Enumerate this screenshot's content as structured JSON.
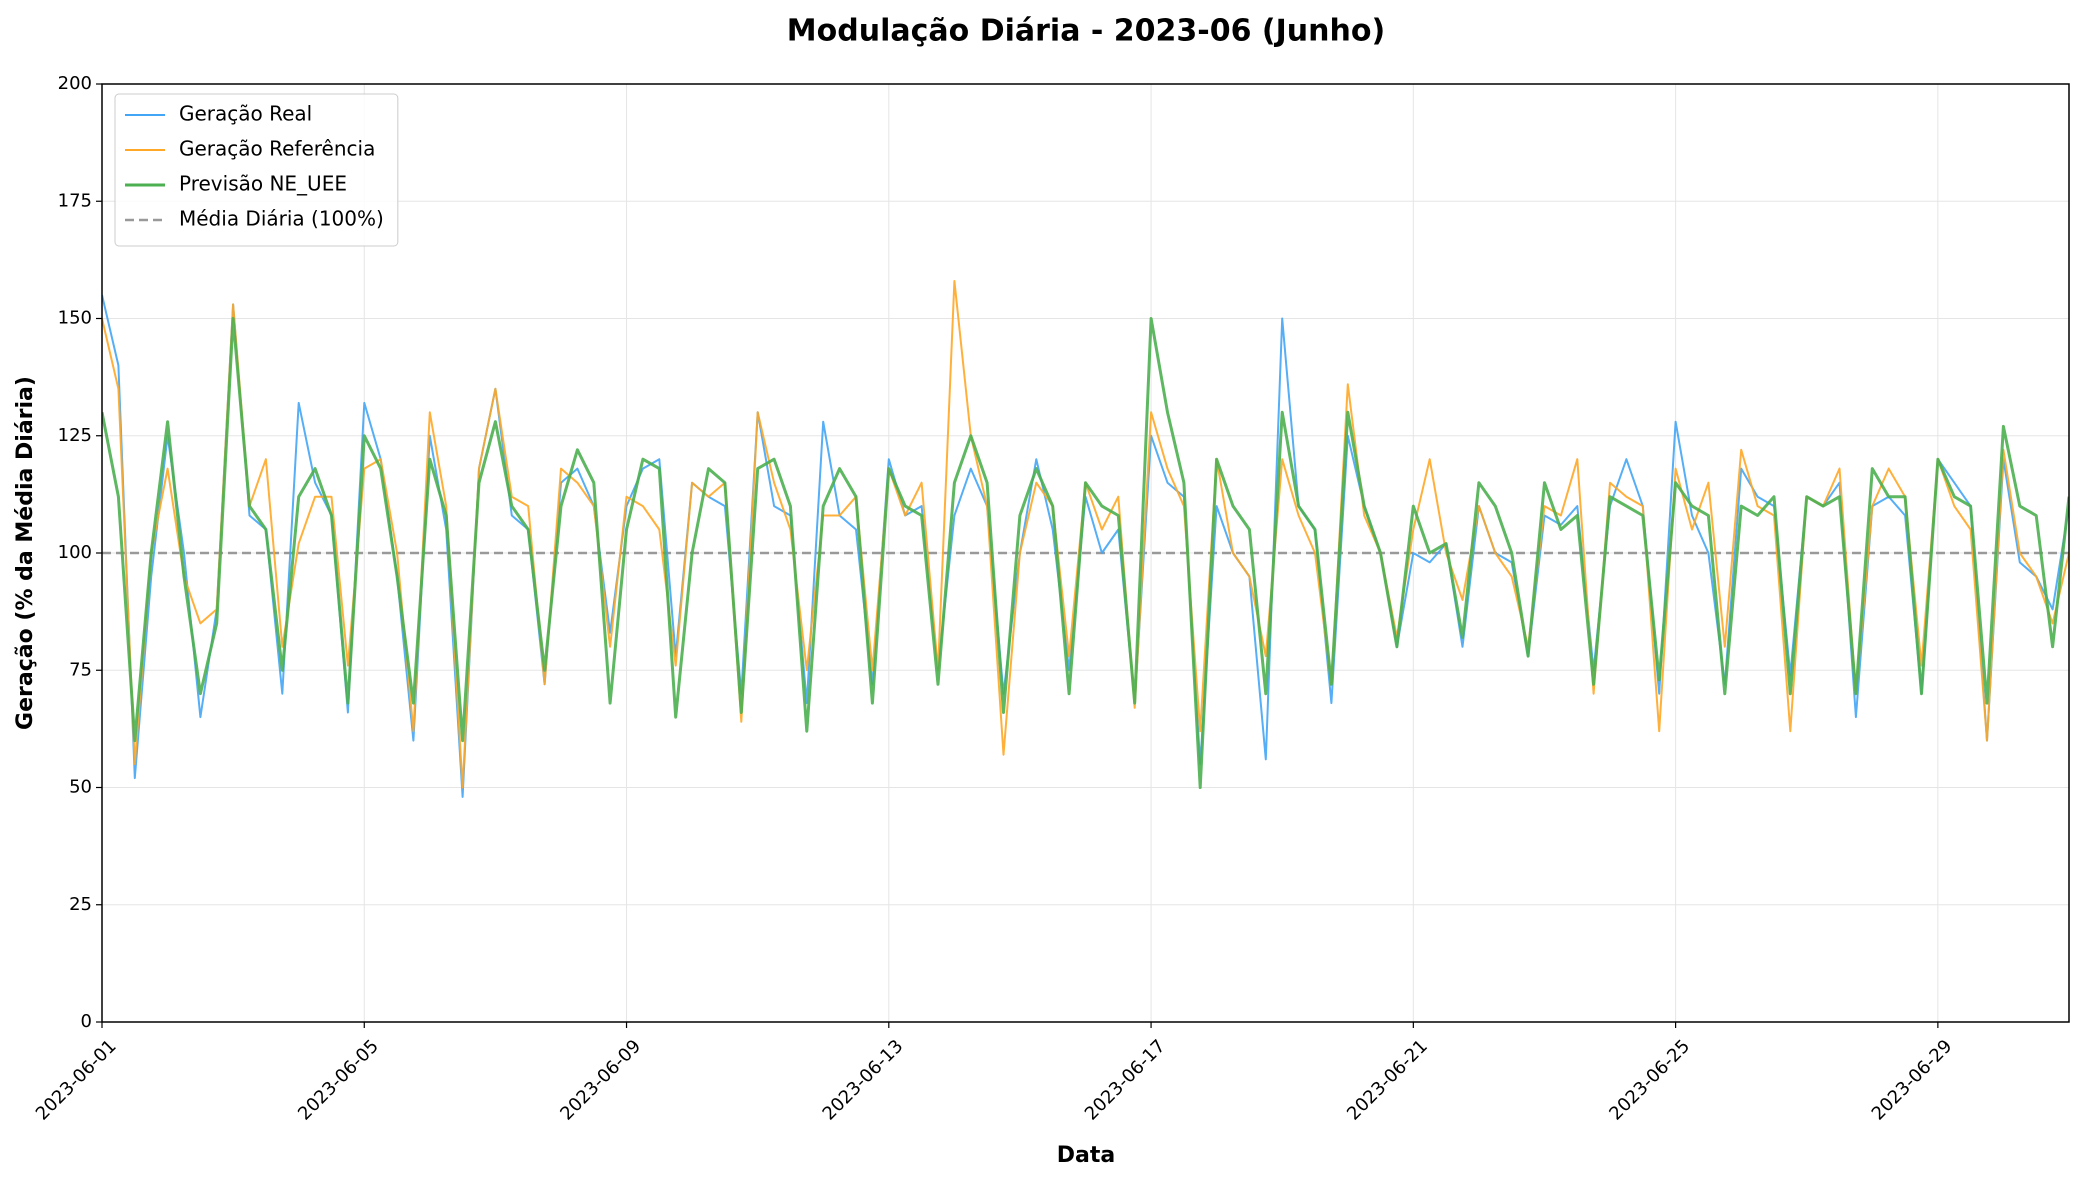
{
  "chart_data": {
    "type": "line",
    "title": "Modulação Diária - 2023-06 (Junho)",
    "x_label": "Data",
    "y_label": "Geração (% da Média Diária)",
    "xlim": [
      0,
      30
    ],
    "ylim": [
      0,
      200
    ],
    "yticks": [
      0,
      25,
      50,
      75,
      100,
      125,
      150,
      175,
      200
    ],
    "xticks": [
      {
        "value": 0,
        "label": "2023-06-01"
      },
      {
        "value": 4,
        "label": "2023-06-05"
      },
      {
        "value": 8,
        "label": "2023-06-09"
      },
      {
        "value": 12,
        "label": "2023-06-13"
      },
      {
        "value": 16,
        "label": "2023-06-17"
      },
      {
        "value": 20,
        "label": "2023-06-21"
      },
      {
        "value": 24,
        "label": "2023-06-25"
      },
      {
        "value": 28,
        "label": "2023-06-29"
      }
    ],
    "grid": true,
    "legend_position": "upper-left",
    "x": [
      0,
      0.25,
      0.5,
      0.75,
      1,
      1.25,
      1.5,
      1.75,
      2,
      2.25,
      2.5,
      2.75,
      3,
      3.25,
      3.5,
      3.75,
      4,
      4.25,
      4.5,
      4.75,
      5,
      5.25,
      5.5,
      5.75,
      6,
      6.25,
      6.5,
      6.75,
      7,
      7.25,
      7.5,
      7.75,
      8,
      8.25,
      8.5,
      8.75,
      9,
      9.25,
      9.5,
      9.75,
      10,
      10.25,
      10.5,
      10.75,
      11,
      11.25,
      11.5,
      11.75,
      12,
      12.25,
      12.5,
      12.75,
      13,
      13.25,
      13.5,
      13.75,
      14,
      14.25,
      14.5,
      14.75,
      15,
      15.25,
      15.5,
      15.75,
      16,
      16.25,
      16.5,
      16.75,
      17,
      17.25,
      17.5,
      17.75,
      18,
      18.25,
      18.5,
      18.75,
      19,
      19.25,
      19.5,
      19.75,
      20,
      20.25,
      20.5,
      20.75,
      21,
      21.25,
      21.5,
      21.75,
      22,
      22.25,
      22.5,
      22.75,
      23,
      23.25,
      23.5,
      23.75,
      24,
      24.25,
      24.5,
      24.75,
      25,
      25.25,
      25.5,
      25.75,
      26,
      26.25,
      26.5,
      26.75,
      27,
      27.25,
      27.5,
      27.75,
      28,
      28.25,
      28.5,
      28.75,
      29,
      29.25,
      29.5,
      29.75,
      30
    ],
    "series": [
      {
        "name": "Geração Real",
        "color": "#42a5f5",
        "width": 2,
        "values": [
          155,
          140,
          52,
          95,
          125,
          100,
          65,
          88,
          153,
          108,
          105,
          70,
          132,
          115,
          108,
          66,
          132,
          120,
          95,
          60,
          125,
          105,
          48,
          118,
          135,
          108,
          105,
          72,
          115,
          118,
          110,
          83,
          110,
          118,
          120,
          78,
          115,
          112,
          110,
          70,
          130,
          110,
          108,
          68,
          128,
          108,
          105,
          72,
          120,
          108,
          110,
          75,
          108,
          118,
          110,
          70,
          100,
          120,
          105,
          75,
          112,
          100,
          105,
          68,
          125,
          115,
          112,
          55,
          110,
          100,
          95,
          56,
          150,
          110,
          105,
          68,
          125,
          110,
          100,
          80,
          100,
          98,
          102,
          80,
          110,
          100,
          98,
          78,
          108,
          106,
          110,
          75,
          110,
          120,
          110,
          70,
          128,
          108,
          100,
          72,
          118,
          112,
          110,
          74,
          112,
          110,
          115,
          65,
          110,
          112,
          108,
          70,
          120,
          115,
          110,
          60,
          120,
          98,
          95,
          88,
          110
        ]
      },
      {
        "name": "Geração Referência",
        "color": "#ffa726",
        "width": 2,
        "values": [
          150,
          135,
          55,
          100,
          118,
          95,
          85,
          88,
          153,
          110,
          120,
          80,
          102,
          112,
          112,
          76,
          118,
          120,
          100,
          62,
          130,
          110,
          50,
          118,
          135,
          112,
          110,
          72,
          118,
          115,
          110,
          80,
          112,
          110,
          105,
          76,
          115,
          112,
          115,
          64,
          130,
          115,
          105,
          75,
          108,
          108,
          112,
          75,
          118,
          108,
          115,
          75,
          158,
          125,
          110,
          57,
          100,
          115,
          110,
          78,
          115,
          105,
          112,
          67,
          130,
          118,
          110,
          62,
          120,
          100,
          95,
          78,
          120,
          108,
          100,
          72,
          136,
          108,
          100,
          82,
          105,
          120,
          100,
          90,
          110,
          100,
          95,
          80,
          110,
          108,
          120,
          70,
          115,
          112,
          110,
          62,
          118,
          105,
          115,
          80,
          122,
          110,
          108,
          62,
          112,
          110,
          118,
          70,
          110,
          118,
          112,
          76,
          120,
          110,
          105,
          60,
          122,
          100,
          95,
          85,
          100
        ]
      },
      {
        "name": "Previsão NE_UEE",
        "color": "#4caf50",
        "width": 3,
        "values": [
          130,
          112,
          60,
          100,
          128,
          95,
          70,
          85,
          150,
          110,
          105,
          75,
          112,
          118,
          108,
          68,
          125,
          118,
          95,
          68,
          120,
          108,
          60,
          115,
          128,
          110,
          105,
          75,
          110,
          122,
          115,
          68,
          105,
          120,
          118,
          65,
          100,
          118,
          115,
          66,
          118,
          120,
          110,
          62,
          110,
          118,
          112,
          68,
          118,
          110,
          108,
          72,
          115,
          125,
          115,
          66,
          108,
          118,
          110,
          70,
          115,
          110,
          108,
          68,
          150,
          130,
          115,
          50,
          120,
          110,
          105,
          70,
          130,
          110,
          105,
          72,
          130,
          110,
          100,
          80,
          110,
          100,
          102,
          82,
          115,
          110,
          100,
          78,
          115,
          105,
          108,
          72,
          112,
          110,
          108,
          73,
          115,
          110,
          108,
          70,
          110,
          108,
          112,
          70,
          112,
          110,
          112,
          70,
          118,
          112,
          112,
          70,
          120,
          112,
          110,
          68,
          127,
          110,
          108,
          80,
          112
        ]
      }
    ],
    "reference_line": {
      "name": "Média Diária (100%)",
      "value": 100,
      "color": "#999999"
    }
  }
}
